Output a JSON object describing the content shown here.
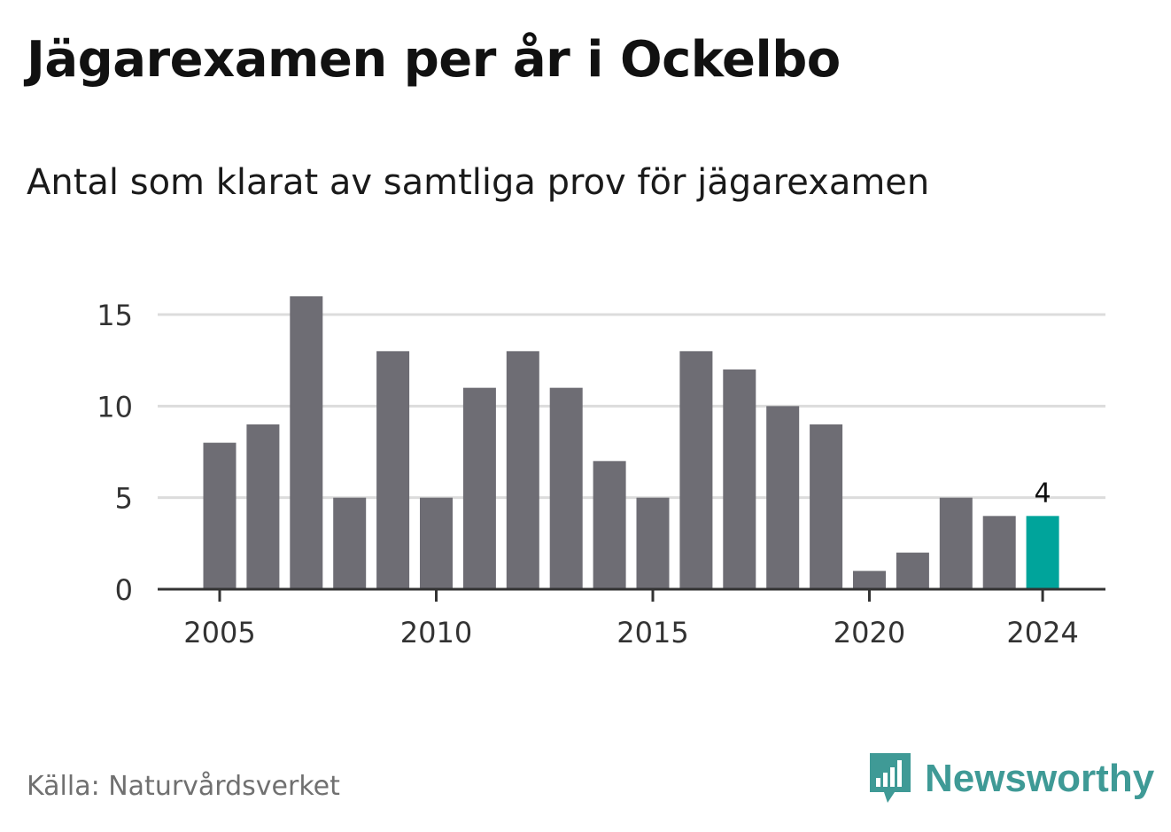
{
  "title": "Jägarexamen per år i Ockelbo",
  "subtitle": "Antal som klarat av samtliga prov för jägarexamen",
  "source": "Källa: Naturvårdsverket",
  "brand": "Newsworthy",
  "colors": {
    "bar": "#6e6d74",
    "highlight": "#00a49b",
    "grid": "#dcdcdc",
    "axis": "#333333",
    "brand": "#3f9a96"
  },
  "chart_data": {
    "type": "bar",
    "x": [
      2005,
      2006,
      2007,
      2008,
      2009,
      2010,
      2011,
      2012,
      2013,
      2014,
      2015,
      2016,
      2017,
      2018,
      2019,
      2020,
      2021,
      2022,
      2023,
      2024
    ],
    "values": [
      8,
      9,
      16,
      5,
      13,
      5,
      11,
      13,
      11,
      7,
      5,
      13,
      12,
      10,
      9,
      1,
      2,
      5,
      4,
      4
    ],
    "highlight_index": 19,
    "highlight_label": "4",
    "xticks": [
      "2005",
      "2010",
      "2015",
      "2020",
      "2024"
    ],
    "yticks": [
      "0",
      "5",
      "10",
      "15"
    ],
    "ylim": [
      0,
      16
    ],
    "grid": true,
    "xlabel": "",
    "ylabel": ""
  }
}
